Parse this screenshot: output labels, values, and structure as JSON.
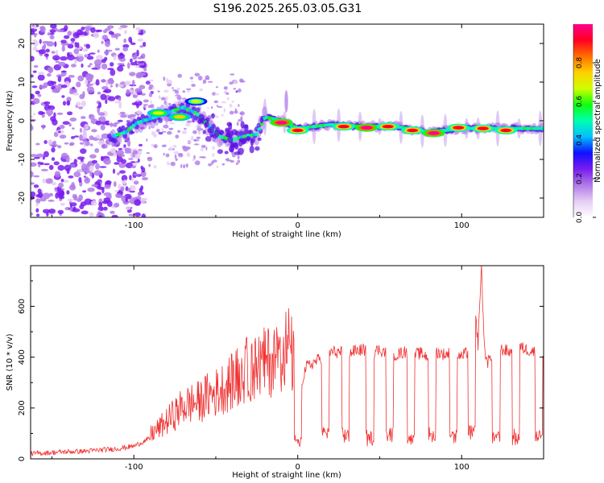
{
  "title": "S196.2025.265.03.05.G31",
  "chart_data": [
    {
      "type": "heatmap",
      "name": "spectrogram",
      "xlabel": "Height of straight line (km)",
      "ylabel": "Frequency (Hz)",
      "xlim": [
        -163,
        150
      ],
      "ylim": [
        -25,
        25
      ],
      "xticks": [
        -100,
        0,
        100
      ],
      "xtick_labels": [
        "-100",
        "0",
        "100"
      ],
      "yticks": [
        -20,
        -10,
        0,
        10,
        20
      ],
      "ytick_labels": [
        "-20",
        "-10",
        "0",
        "10",
        "20"
      ],
      "colorbar": {
        "label": "Normalized spectral amplitude",
        "range": [
          0,
          1
        ],
        "ticks": [
          0.0,
          0.2,
          0.4,
          0.6,
          0.8
        ],
        "tick_labels": [
          "0.0",
          "0.2",
          "0.4",
          "0.6",
          "0.8"
        ],
        "colors": [
          "#ffffff",
          "#e6cdf5",
          "#b07ae8",
          "#7a1cf0",
          "#1010ff",
          "#00bfff",
          "#00ffb0",
          "#10ff10",
          "#d0ff00",
          "#ffd000",
          "#ff7000",
          "#ff0020",
          "#ff0090"
        ]
      },
      "ridge": [
        {
          "x": -113,
          "f": -4.0
        },
        {
          "x": -105,
          "f": -3.0
        },
        {
          "x": -98,
          "f": -0.5
        },
        {
          "x": -90,
          "f": 0.5
        },
        {
          "x": -80,
          "f": 2.0
        },
        {
          "x": -70,
          "f": 3.5
        },
        {
          "x": -62,
          "f": 2.0
        },
        {
          "x": -55,
          "f": -1.0
        },
        {
          "x": -48,
          "f": -4.0
        },
        {
          "x": -40,
          "f": -5.0
        },
        {
          "x": -32,
          "f": -4.0
        },
        {
          "x": -25,
          "f": -3.5
        },
        {
          "x": -20,
          "f": 1.0
        },
        {
          "x": -10,
          "f": 0.0
        },
        {
          "x": 0,
          "f": -2.0
        },
        {
          "x": 20,
          "f": -1.0
        },
        {
          "x": 40,
          "f": -1.5
        },
        {
          "x": 60,
          "f": -1.5
        },
        {
          "x": 80,
          "f": -3.0
        },
        {
          "x": 100,
          "f": -2.0
        },
        {
          "x": 120,
          "f": -2.0
        },
        {
          "x": 150,
          "f": -2.0
        }
      ],
      "peaks": [
        {
          "x": -10,
          "f": -0.5,
          "a": 0.95
        },
        {
          "x": 0,
          "f": -2.5,
          "a": 0.9
        },
        {
          "x": 28,
          "f": -1.5,
          "a": 0.9
        },
        {
          "x": 42,
          "f": -1.8,
          "a": 1.0
        },
        {
          "x": 55,
          "f": -1.5,
          "a": 0.9
        },
        {
          "x": 70,
          "f": -2.5,
          "a": 0.9
        },
        {
          "x": 83,
          "f": -3.2,
          "a": 1.0
        },
        {
          "x": 98,
          "f": -1.8,
          "a": 0.9
        },
        {
          "x": 113,
          "f": -2.0,
          "a": 0.85
        },
        {
          "x": 127,
          "f": -2.5,
          "a": 0.85
        },
        {
          "x": -72,
          "f": 1.0,
          "a": 0.7
        },
        {
          "x": -85,
          "f": 2.0,
          "a": 0.65
        },
        {
          "x": -62,
          "f": 5.0,
          "a": 0.6
        }
      ]
    },
    {
      "type": "line",
      "name": "snr",
      "xlabel": "Height of straight line (km)",
      "ylabel": "SNR (10 * v/v)",
      "xlim": [
        -163,
        150
      ],
      "ylim": [
        0,
        760
      ],
      "xticks": [
        -100,
        0,
        100
      ],
      "xtick_labels": [
        "-100",
        "0",
        "100"
      ],
      "yticks": [
        0,
        200,
        400,
        600
      ],
      "ytick_labels": [
        "0",
        "200",
        "400",
        "600"
      ],
      "color": "#f03030",
      "series": [
        {
          "name": "SNR",
          "x": [
            -163,
            -150,
            -140,
            -130,
            -120,
            -110,
            -100,
            -95,
            -90,
            -85,
            -80,
            -75,
            -70,
            -65,
            -60,
            -55,
            -50,
            -45,
            -40,
            -35,
            -30,
            -25,
            -20,
            -15,
            -10,
            -5,
            0,
            5,
            10,
            15,
            20,
            25,
            30,
            35,
            40,
            45,
            50,
            55,
            60,
            65,
            70,
            75,
            80,
            85,
            90,
            95,
            100,
            105,
            108,
            110,
            112,
            114,
            116,
            120,
            125,
            130,
            135,
            140,
            145,
            150
          ],
          "y": [
            20,
            25,
            28,
            30,
            35,
            40,
            50,
            65,
            80,
            100,
            125,
            150,
            175,
            185,
            190,
            210,
            220,
            240,
            255,
            280,
            300,
            310,
            320,
            330,
            360,
            380,
            250,
            360,
            380,
            400,
            420,
            420,
            410,
            425,
            430,
            420,
            430,
            415,
            410,
            420,
            410,
            415,
            400,
            420,
            410,
            420,
            400,
            430,
            600,
            450,
            760,
            420,
            380,
            420,
            430,
            420,
            440,
            430,
            420,
            400
          ],
          "drops": [
            {
              "x": 0,
              "y": 50
            },
            {
              "x": 17,
              "y": 90
            },
            {
              "x": 29,
              "y": 80
            },
            {
              "x": 44,
              "y": 70
            },
            {
              "x": 56,
              "y": 80
            },
            {
              "x": 69,
              "y": 70
            },
            {
              "x": 82,
              "y": 80
            },
            {
              "x": 95,
              "y": 80
            },
            {
              "x": 106,
              "y": 90
            },
            {
              "x": 121,
              "y": 70
            },
            {
              "x": 133,
              "y": 70
            },
            {
              "x": 147,
              "y": 80
            }
          ]
        }
      ]
    }
  ]
}
